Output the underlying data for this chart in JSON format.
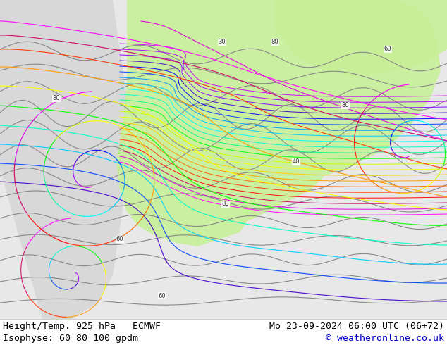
{
  "title_left_line1": "Height/Temp. 925 hPa   ECMWF",
  "title_left_line2": "Isophyse: 60 80 100 gpdm",
  "title_right_line1": "Mo 23-09-2024 06:00 UTC (06+72)",
  "title_right_line2": "© weatheronline.co.uk",
  "bg_color": "#ffffff",
  "text_color": "#000000",
  "copyright_color": "#0000cc",
  "font_size_main": 9.5,
  "fig_width": 6.34,
  "fig_height": 4.9,
  "dpi": 100,
  "map_bg": "#e8e8e8",
  "green_fill": "#c8f0a0",
  "gray_land": "#d0d0d0"
}
